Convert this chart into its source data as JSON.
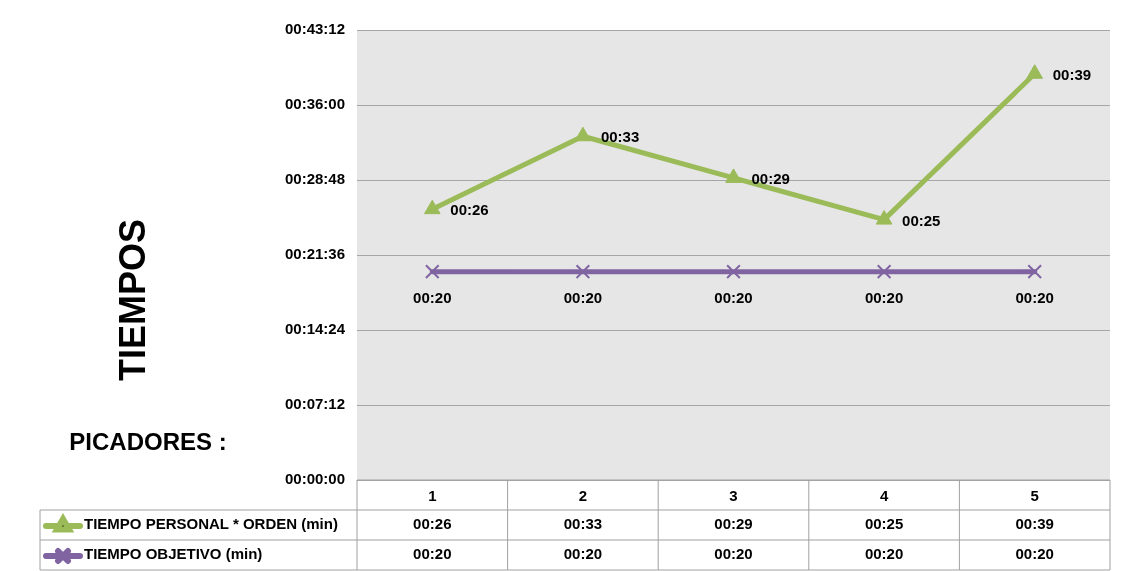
{
  "chart_data": {
    "type": "line",
    "ylabel": "TIEMPOS",
    "annotations": [
      "PICADORES :"
    ],
    "categories": [
      "1",
      "2",
      "3",
      "4",
      "5"
    ],
    "series": [
      {
        "name": "TIEMPO PERSONAL * ORDEN (min)",
        "color": "#9bbb59",
        "marker": "triangle",
        "values": [
          26,
          33,
          29,
          25,
          39
        ],
        "value_labels": [
          "00:26",
          "00:33",
          "00:29",
          "00:25",
          "00:39"
        ]
      },
      {
        "name": "TIEMPO OBJETIVO (min)",
        "color": "#8064a2",
        "marker": "cross",
        "values": [
          20,
          20,
          20,
          20,
          20
        ],
        "value_labels": [
          "00:20",
          "00:20",
          "00:20",
          "00:20",
          "00:20"
        ]
      }
    ],
    "ylim": [
      0,
      43.2
    ],
    "yticks": [
      {
        "value": 0,
        "label": "00:00:00"
      },
      {
        "value": 7.2,
        "label": "00:07:12"
      },
      {
        "value": 14.4,
        "label": "00:14:24"
      },
      {
        "value": 21.6,
        "label": "00:21:36"
      },
      {
        "value": 28.8,
        "label": "00:28:48"
      },
      {
        "value": 36,
        "label": "00:36:00"
      },
      {
        "value": 43.2,
        "label": "00:43:12"
      }
    ],
    "grid": "y",
    "legend": "bottom",
    "line_style": "solid"
  }
}
